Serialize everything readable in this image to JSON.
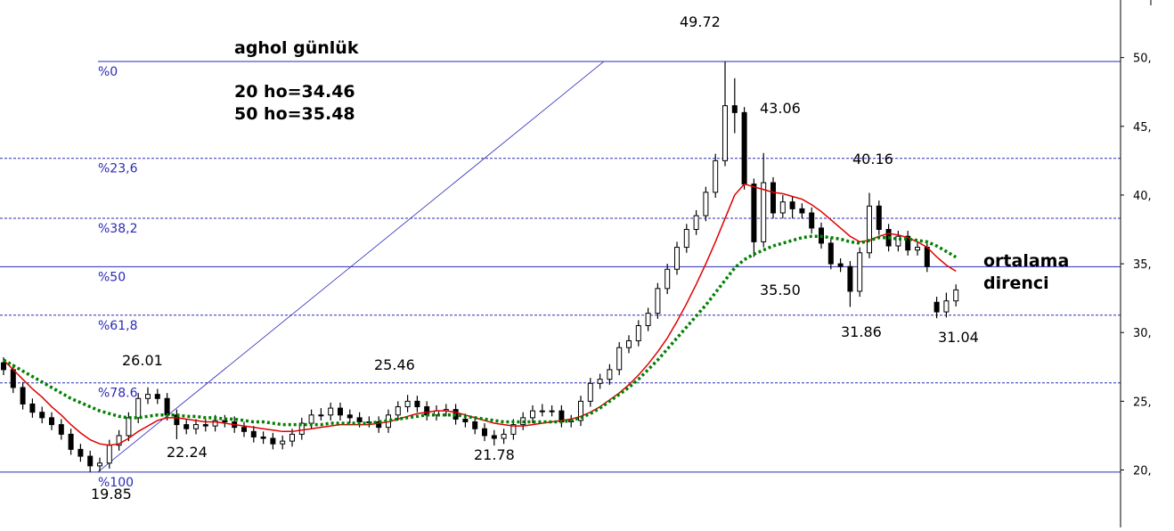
{
  "chart_data": {
    "type": "candlestick",
    "title": "aghol günlük",
    "annotations": [
      "20 ho=34.46",
      "50 ho=35.48",
      "ortalama",
      "direnci",
      "49.72",
      "43.06",
      "40.16",
      "35.50",
      "31.86",
      "31.04",
      "26.01",
      "25.46",
      "22.24",
      "21.78",
      "19.85"
    ],
    "ylim": [
      15.82,
      54.19
    ],
    "yticks": [
      {
        "value": 50,
        "label": "50,"
      },
      {
        "value": 45,
        "label": "45,"
      },
      {
        "value": 40,
        "label": "40,"
      },
      {
        "value": 35,
        "label": "35,"
      },
      {
        "value": 30,
        "label": "30,"
      },
      {
        "value": 25,
        "label": "25,"
      },
      {
        "value": 20,
        "label": "20,"
      }
    ],
    "candle_up_color": "#ffffff",
    "candle_down_color": "#000000",
    "open": [
      27.8,
      27.3,
      26,
      24.8,
      24.2,
      23.8,
      23.3,
      22.6,
      21.5,
      21,
      20.3,
      20.5,
      21.8,
      22.5,
      23.8,
      25.2,
      25.5,
      25.2,
      24,
      23.3,
      23,
      23.3,
      23.2,
      23.6,
      23.5,
      23.1,
      22.8,
      22.4,
      22.3,
      21.9,
      22.1,
      22.6,
      23.4,
      24,
      24,
      24.5,
      24,
      23.8,
      23.5,
      23.5,
      23.1,
      24,
      24.6,
      25,
      24.6,
      24,
      24.3,
      24.4,
      23.7,
      23.5,
      23,
      22.5,
      22.3,
      22.6,
      23.3,
      23.8,
      24.3,
      24.3,
      24.3,
      23.5,
      23.6,
      25,
      26.3,
      26.6,
      27.3,
      28.9,
      29.4,
      30.5,
      31.4,
      33.2,
      34.6,
      36.2,
      37.5,
      38.5,
      40.2,
      42.5,
      46.5,
      46,
      40.8,
      36.6,
      40.9,
      38.7,
      39.5,
      39,
      38.7,
      37.6,
      36.5,
      35,
      34.8,
      33,
      35.8,
      39.2,
      37.5,
      36.3,
      37,
      36,
      36.2,
      32.2,
      31.5,
      32.3
    ],
    "high": [
      28.2,
      27.7,
      26.4,
      25.2,
      24.6,
      24.2,
      23.7,
      23,
      21.9,
      21.4,
      20.9,
      22.2,
      22.9,
      24.2,
      25.6,
      26.01,
      25.9,
      25.6,
      24.4,
      23.7,
      23.7,
      23.7,
      24,
      24,
      23.9,
      23.5,
      23.2,
      22.8,
      22.7,
      22.5,
      23,
      23.8,
      24.4,
      24.5,
      24.9,
      24.9,
      24.4,
      24.2,
      23.9,
      23.9,
      24.4,
      25,
      25.46,
      25.4,
      25,
      24.7,
      24.8,
      24.8,
      24.1,
      23.9,
      23.4,
      22.9,
      23,
      23.7,
      24.2,
      24.7,
      24.8,
      24.7,
      24.7,
      24,
      25.4,
      26.7,
      27,
      27.7,
      29.3,
      29.8,
      30.9,
      31.8,
      33.6,
      35,
      36.6,
      37.9,
      38.9,
      40.6,
      43,
      49.72,
      48.5,
      46.4,
      41.2,
      43.06,
      41.3,
      40,
      39.9,
      39.4,
      39.1,
      38,
      36.9,
      35.4,
      35.2,
      36.2,
      40.16,
      39.6,
      37.9,
      37.4,
      37.4,
      36.6,
      36.6,
      32.6,
      32.9,
      33.5
    ],
    "low": [
      26.9,
      25.6,
      24.4,
      23.8,
      23.4,
      22.9,
      22.2,
      21.1,
      20.6,
      19.85,
      19.9,
      20.1,
      21.4,
      22.1,
      23.4,
      24.8,
      24.8,
      23.6,
      22.24,
      22.6,
      22.6,
      22.8,
      22.8,
      23.1,
      22.7,
      22.4,
      22,
      21.9,
      21.5,
      21.5,
      21.7,
      22.2,
      23,
      23.6,
      23.6,
      23.6,
      23.4,
      23.1,
      23.1,
      22.7,
      22.7,
      23.6,
      24.2,
      24.2,
      23.6,
      23.6,
      23.9,
      23.3,
      23.1,
      22.6,
      22.1,
      21.78,
      21.9,
      22.2,
      22.9,
      23.4,
      23.9,
      23.9,
      23.1,
      23.1,
      23.2,
      24.6,
      25.9,
      26.2,
      26.9,
      28.5,
      29,
      30.1,
      31,
      32.8,
      34.2,
      35.8,
      37.1,
      38.1,
      39.8,
      42.1,
      44.5,
      40.4,
      35.5,
      36.2,
      38.3,
      38.3,
      38.3,
      38.3,
      37.2,
      36.1,
      34.6,
      34.4,
      31.86,
      32.6,
      35.4,
      37.1,
      35.9,
      35.9,
      35.6,
      35.6,
      34.4,
      31.04,
      31.1,
      31.9
    ],
    "close": [
      27.3,
      26,
      24.8,
      24.2,
      23.8,
      23.3,
      22.6,
      21.5,
      21,
      20.3,
      20.5,
      21.8,
      22.5,
      23.8,
      25.2,
      25.5,
      25.2,
      24,
      23.3,
      23,
      23.3,
      23.2,
      23.6,
      23.5,
      23.1,
      22.8,
      22.4,
      22.3,
      21.9,
      22.1,
      22.6,
      23.4,
      24,
      24,
      24.5,
      24,
      23.8,
      23.5,
      23.5,
      23.1,
      24,
      24.6,
      25,
      24.6,
      24,
      24.3,
      24.4,
      23.7,
      23.5,
      23,
      22.5,
      22.3,
      22.6,
      23.3,
      23.8,
      24.3,
      24.3,
      24.3,
      23.5,
      23.6,
      25,
      26.3,
      26.6,
      27.3,
      28.9,
      29.4,
      30.5,
      31.4,
      33.2,
      34.6,
      36.2,
      37.5,
      38.5,
      40.2,
      42.5,
      46.5,
      46,
      40.8,
      36.6,
      40.9,
      38.7,
      39.5,
      39,
      38.7,
      37.6,
      36.5,
      35,
      34.8,
      33,
      35.8,
      39.2,
      37.5,
      36.3,
      37,
      36,
      36.2,
      34.8,
      31.5,
      32.3,
      33.1
    ],
    "series": [
      {
        "color": "#e00000",
        "style": "solid",
        "values": [
          28,
          27.3,
          26.6,
          25.9,
          25.3,
          24.6,
          24,
          23.3,
          22.7,
          22.2,
          21.9,
          21.8,
          21.9,
          22.3,
          22.8,
          23.2,
          23.6,
          23.8,
          23.8,
          23.7,
          23.6,
          23.5,
          23.5,
          23.4,
          23.3,
          23.2,
          23.1,
          23,
          22.9,
          22.8,
          22.8,
          22.9,
          23,
          23.1,
          23.2,
          23.3,
          23.3,
          23.3,
          23.3,
          23.4,
          23.5,
          23.7,
          23.9,
          24.1,
          24.2,
          24.3,
          24.3,
          24.2,
          24,
          23.8,
          23.6,
          23.4,
          23.3,
          23.2,
          23.2,
          23.3,
          23.4,
          23.5,
          23.6,
          23.7,
          23.9,
          24.2,
          24.6,
          25.1,
          25.6,
          26.2,
          26.9,
          27.7,
          28.6,
          29.6,
          30.8,
          32.1,
          33.5,
          35,
          36.6,
          38.3,
          40,
          40.8,
          40.6,
          40.4,
          40.2,
          40.1,
          39.9,
          39.7,
          39.3,
          38.8,
          38.2,
          37.6,
          37,
          36.6,
          36.7,
          37,
          37.2,
          37.1,
          36.9,
          36.6,
          36.2,
          35.5,
          34.9,
          34.46
        ]
      },
      {
        "color": "#008000",
        "style": "dotted",
        "values": [
          28,
          27.6,
          27.2,
          26.8,
          26.4,
          26,
          25.6,
          25.2,
          24.9,
          24.6,
          24.3,
          24.1,
          23.9,
          23.8,
          23.8,
          23.9,
          24,
          24,
          24,
          23.9,
          23.9,
          23.8,
          23.8,
          23.7,
          23.7,
          23.6,
          23.5,
          23.5,
          23.4,
          23.3,
          23.3,
          23.3,
          23.3,
          23.3,
          23.4,
          23.4,
          23.4,
          23.4,
          23.4,
          23.5,
          23.6,
          23.7,
          23.8,
          23.9,
          24,
          24,
          24,
          24,
          23.9,
          23.8,
          23.7,
          23.6,
          23.5,
          23.5,
          23.5,
          23.5,
          23.5,
          23.5,
          23.5,
          23.6,
          23.8,
          24.1,
          24.5,
          25,
          25.5,
          26,
          26.6,
          27.3,
          28,
          28.8,
          29.6,
          30.4,
          31.2,
          32,
          32.9,
          33.8,
          34.7,
          35.3,
          35.7,
          36,
          36.3,
          36.5,
          36.7,
          36.9,
          37,
          37,
          36.9,
          36.8,
          36.6,
          36.5,
          36.7,
          36.9,
          36.9,
          36.8,
          36.8,
          36.7,
          36.6,
          36.3,
          35.9,
          35.48
        ]
      }
    ],
    "fib_color": "#2a2ab8",
    "fib_levels": [
      {
        "label": "%0",
        "value": 49.72,
        "style": "solid"
      },
      {
        "label": "%23,6",
        "value": 42.67,
        "style": "dashed"
      },
      {
        "label": "%38,2",
        "value": 38.31,
        "style": "dashed"
      },
      {
        "label": "%50",
        "value": 34.785,
        "style": "solid"
      },
      {
        "label": "%61,8",
        "value": 31.26,
        "style": "dashed"
      },
      {
        "label": "%78.6",
        "value": 26.34,
        "style": "dashed"
      },
      {
        "label": "%100",
        "value": 19.85,
        "style": "solid"
      }
    ],
    "trendline": {
      "x": [
        9.8,
        62.4
      ],
      "y": [
        19.85,
        49.72
      ]
    }
  }
}
